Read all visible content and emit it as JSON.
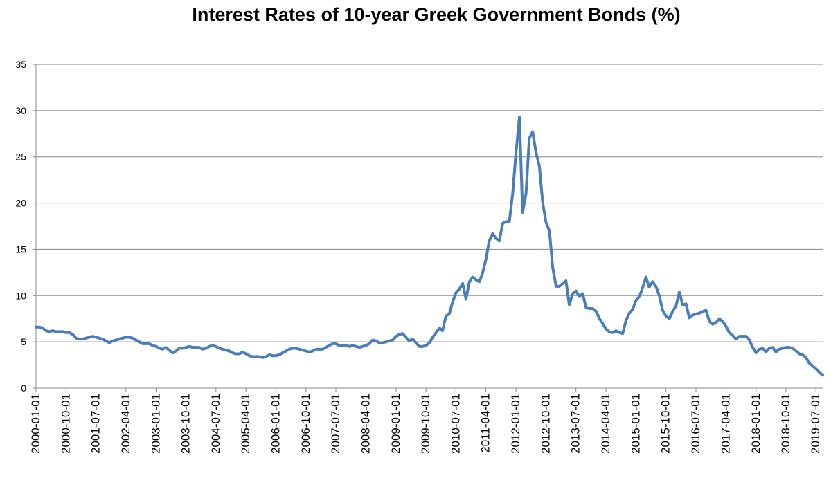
{
  "chart_data": {
    "type": "line",
    "title": "Interest Rates of 10-year Greek Government Bonds (%)",
    "xlabel": "",
    "ylabel": "",
    "ylim": [
      0,
      35
    ],
    "yticks": [
      0,
      5,
      10,
      15,
      20,
      25,
      30,
      35
    ],
    "grid": "horizontal",
    "legend": "none",
    "x_tick_labels": [
      "2000-01-01",
      "2000-10-01",
      "2001-07-01",
      "2002-04-01",
      "2003-01-01",
      "2003-10-01",
      "2004-07-01",
      "2005-04-01",
      "2006-01-01",
      "2006-10-01",
      "2007-07-01",
      "2008-04-01",
      "2009-01-01",
      "2009-10-01",
      "2010-07-01",
      "2011-04-01",
      "2012-01-01",
      "2012-10-01",
      "2013-07-01",
      "2014-04-01",
      "2015-01-01",
      "2015-10-01",
      "2016-07-01",
      "2017-04-01",
      "2018-01-01",
      "2018-10-01",
      "2019-07-01"
    ],
    "x_range": [
      "2000-01-01",
      "2019-09-01"
    ],
    "series": [
      {
        "color": "#4A7EBB",
        "points": [
          [
            "2000-01-01",
            6.6
          ],
          [
            "2000-02-01",
            6.6
          ],
          [
            "2000-03-01",
            6.5
          ],
          [
            "2000-04-01",
            6.2
          ],
          [
            "2000-05-01",
            6.1
          ],
          [
            "2000-06-01",
            6.2
          ],
          [
            "2000-07-01",
            6.1
          ],
          [
            "2000-08-01",
            6.1
          ],
          [
            "2000-09-01",
            6.1
          ],
          [
            "2000-10-01",
            6.0
          ],
          [
            "2000-11-01",
            6.0
          ],
          [
            "2000-12-01",
            5.8
          ],
          [
            "2001-01-01",
            5.4
          ],
          [
            "2001-02-01",
            5.3
          ],
          [
            "2001-03-01",
            5.3
          ],
          [
            "2001-04-01",
            5.4
          ],
          [
            "2001-05-01",
            5.5
          ],
          [
            "2001-06-01",
            5.6
          ],
          [
            "2001-07-01",
            5.5
          ],
          [
            "2001-08-01",
            5.4
          ],
          [
            "2001-09-01",
            5.3
          ],
          [
            "2001-10-01",
            5.1
          ],
          [
            "2001-11-01",
            4.9
          ],
          [
            "2001-12-01",
            5.1
          ],
          [
            "2002-01-01",
            5.2
          ],
          [
            "2002-02-01",
            5.3
          ],
          [
            "2002-03-01",
            5.4
          ],
          [
            "2002-04-01",
            5.5
          ],
          [
            "2002-05-01",
            5.5
          ],
          [
            "2002-06-01",
            5.4
          ],
          [
            "2002-07-01",
            5.2
          ],
          [
            "2002-08-01",
            5.0
          ],
          [
            "2002-09-01",
            4.8
          ],
          [
            "2002-10-01",
            4.8
          ],
          [
            "2002-11-01",
            4.8
          ],
          [
            "2002-12-01",
            4.6
          ],
          [
            "2003-01-01",
            4.5
          ],
          [
            "2003-02-01",
            4.3
          ],
          [
            "2003-03-01",
            4.2
          ],
          [
            "2003-04-01",
            4.4
          ],
          [
            "2003-05-01",
            4.1
          ],
          [
            "2003-06-01",
            3.8
          ],
          [
            "2003-07-01",
            4.0
          ],
          [
            "2003-08-01",
            4.3
          ],
          [
            "2003-09-01",
            4.3
          ],
          [
            "2003-10-01",
            4.4
          ],
          [
            "2003-11-01",
            4.5
          ],
          [
            "2003-12-01",
            4.4
          ],
          [
            "2004-01-01",
            4.4
          ],
          [
            "2004-02-01",
            4.4
          ],
          [
            "2004-03-01",
            4.2
          ],
          [
            "2004-04-01",
            4.3
          ],
          [
            "2004-05-01",
            4.5
          ],
          [
            "2004-06-01",
            4.6
          ],
          [
            "2004-07-01",
            4.5
          ],
          [
            "2004-08-01",
            4.3
          ],
          [
            "2004-09-01",
            4.2
          ],
          [
            "2004-10-01",
            4.1
          ],
          [
            "2004-11-01",
            4.0
          ],
          [
            "2004-12-01",
            3.8
          ],
          [
            "2005-01-01",
            3.7
          ],
          [
            "2005-02-01",
            3.7
          ],
          [
            "2005-03-01",
            3.9
          ],
          [
            "2005-04-01",
            3.7
          ],
          [
            "2005-05-01",
            3.5
          ],
          [
            "2005-06-01",
            3.4
          ],
          [
            "2005-07-01",
            3.4
          ],
          [
            "2005-08-01",
            3.4
          ],
          [
            "2005-09-01",
            3.3
          ],
          [
            "2005-10-01",
            3.4
          ],
          [
            "2005-11-01",
            3.6
          ],
          [
            "2005-12-01",
            3.5
          ],
          [
            "2006-01-01",
            3.5
          ],
          [
            "2006-02-01",
            3.6
          ],
          [
            "2006-03-01",
            3.8
          ],
          [
            "2006-04-01",
            4.0
          ],
          [
            "2006-05-01",
            4.2
          ],
          [
            "2006-06-01",
            4.3
          ],
          [
            "2006-07-01",
            4.3
          ],
          [
            "2006-08-01",
            4.2
          ],
          [
            "2006-09-01",
            4.1
          ],
          [
            "2006-10-01",
            4.0
          ],
          [
            "2006-11-01",
            3.9
          ],
          [
            "2006-12-01",
            4.0
          ],
          [
            "2007-01-01",
            4.2
          ],
          [
            "2007-02-01",
            4.2
          ],
          [
            "2007-03-01",
            4.2
          ],
          [
            "2007-04-01",
            4.4
          ],
          [
            "2007-05-01",
            4.6
          ],
          [
            "2007-06-01",
            4.8
          ],
          [
            "2007-07-01",
            4.8
          ],
          [
            "2007-08-01",
            4.6
          ],
          [
            "2007-09-01",
            4.6
          ],
          [
            "2007-10-01",
            4.6
          ],
          [
            "2007-11-01",
            4.5
          ],
          [
            "2007-12-01",
            4.6
          ],
          [
            "2008-01-01",
            4.5
          ],
          [
            "2008-02-01",
            4.4
          ],
          [
            "2008-03-01",
            4.5
          ],
          [
            "2008-04-01",
            4.6
          ],
          [
            "2008-05-01",
            4.8
          ],
          [
            "2008-06-01",
            5.2
          ],
          [
            "2008-07-01",
            5.1
          ],
          [
            "2008-08-01",
            4.9
          ],
          [
            "2008-09-01",
            4.9
          ],
          [
            "2008-10-01",
            5.0
          ],
          [
            "2008-11-01",
            5.1
          ],
          [
            "2008-12-01",
            5.2
          ],
          [
            "2009-01-01",
            5.6
          ],
          [
            "2009-02-01",
            5.8
          ],
          [
            "2009-03-01",
            5.9
          ],
          [
            "2009-04-01",
            5.5
          ],
          [
            "2009-05-01",
            5.1
          ],
          [
            "2009-06-01",
            5.3
          ],
          [
            "2009-07-01",
            4.9
          ],
          [
            "2009-08-01",
            4.5
          ],
          [
            "2009-09-01",
            4.5
          ],
          [
            "2009-10-01",
            4.6
          ],
          [
            "2009-11-01",
            4.9
          ],
          [
            "2009-12-01",
            5.5
          ],
          [
            "2010-01-01",
            6.0
          ],
          [
            "2010-02-01",
            6.5
          ],
          [
            "2010-03-01",
            6.2
          ],
          [
            "2010-04-01",
            7.8
          ],
          [
            "2010-05-01",
            8.0
          ],
          [
            "2010-06-01",
            9.3
          ],
          [
            "2010-07-01",
            10.3
          ],
          [
            "2010-08-01",
            10.7
          ],
          [
            "2010-09-01",
            11.3
          ],
          [
            "2010-10-01",
            9.6
          ],
          [
            "2010-11-01",
            11.5
          ],
          [
            "2010-12-01",
            12.0
          ],
          [
            "2011-01-01",
            11.7
          ],
          [
            "2011-02-01",
            11.5
          ],
          [
            "2011-03-01",
            12.4
          ],
          [
            "2011-04-01",
            13.9
          ],
          [
            "2011-05-01",
            15.9
          ],
          [
            "2011-06-01",
            16.7
          ],
          [
            "2011-07-01",
            16.2
          ],
          [
            "2011-08-01",
            15.9
          ],
          [
            "2011-09-01",
            17.8
          ],
          [
            "2011-10-01",
            18.0
          ],
          [
            "2011-11-01",
            18.0
          ],
          [
            "2011-12-01",
            21.0
          ],
          [
            "2012-01-01",
            25.5
          ],
          [
            "2012-02-01",
            29.3
          ],
          [
            "2012-03-01",
            19.0
          ],
          [
            "2012-04-01",
            21.0
          ],
          [
            "2012-05-01",
            27.0
          ],
          [
            "2012-06-01",
            27.7
          ],
          [
            "2012-07-01",
            25.5
          ],
          [
            "2012-08-01",
            24.0
          ],
          [
            "2012-09-01",
            20.0
          ],
          [
            "2012-10-01",
            17.9
          ],
          [
            "2012-11-01",
            17.0
          ],
          [
            "2012-12-01",
            13.0
          ],
          [
            "2013-01-01",
            11.0
          ],
          [
            "2013-02-01",
            11.0
          ],
          [
            "2013-03-01",
            11.3
          ],
          [
            "2013-04-01",
            11.6
          ],
          [
            "2013-05-01",
            9.0
          ],
          [
            "2013-06-01",
            10.2
          ],
          [
            "2013-07-01",
            10.5
          ],
          [
            "2013-08-01",
            9.9
          ],
          [
            "2013-09-01",
            10.2
          ],
          [
            "2013-10-01",
            8.7
          ],
          [
            "2013-11-01",
            8.6
          ],
          [
            "2013-12-01",
            8.6
          ],
          [
            "2014-01-01",
            8.3
          ],
          [
            "2014-02-01",
            7.5
          ],
          [
            "2014-03-01",
            7.0
          ],
          [
            "2014-04-01",
            6.4
          ],
          [
            "2014-05-01",
            6.1
          ],
          [
            "2014-06-01",
            6.0
          ],
          [
            "2014-07-01",
            6.2
          ],
          [
            "2014-08-01",
            6.0
          ],
          [
            "2014-09-01",
            5.9
          ],
          [
            "2014-10-01",
            7.3
          ],
          [
            "2014-11-01",
            8.1
          ],
          [
            "2014-12-01",
            8.5
          ],
          [
            "2015-01-01",
            9.5
          ],
          [
            "2015-02-01",
            9.9
          ],
          [
            "2015-03-01",
            10.8
          ],
          [
            "2015-04-01",
            12.0
          ],
          [
            "2015-05-01",
            10.9
          ],
          [
            "2015-06-01",
            11.5
          ],
          [
            "2015-07-01",
            11.0
          ],
          [
            "2015-08-01",
            10.0
          ],
          [
            "2015-09-01",
            8.4
          ],
          [
            "2015-10-01",
            7.8
          ],
          [
            "2015-11-01",
            7.5
          ],
          [
            "2015-12-01",
            8.3
          ],
          [
            "2016-01-01",
            8.9
          ],
          [
            "2016-02-01",
            10.4
          ],
          [
            "2016-03-01",
            9.0
          ],
          [
            "2016-04-01",
            9.1
          ],
          [
            "2016-05-01",
            7.6
          ],
          [
            "2016-06-01",
            7.9
          ],
          [
            "2016-07-01",
            8.0
          ],
          [
            "2016-08-01",
            8.1
          ],
          [
            "2016-09-01",
            8.3
          ],
          [
            "2016-10-01",
            8.4
          ],
          [
            "2016-11-01",
            7.2
          ],
          [
            "2016-12-01",
            6.9
          ],
          [
            "2017-01-01",
            7.1
          ],
          [
            "2017-02-01",
            7.5
          ],
          [
            "2017-03-01",
            7.2
          ],
          [
            "2017-04-01",
            6.7
          ],
          [
            "2017-05-01",
            6.0
          ],
          [
            "2017-06-01",
            5.7
          ],
          [
            "2017-07-01",
            5.3
          ],
          [
            "2017-08-01",
            5.6
          ],
          [
            "2017-09-01",
            5.6
          ],
          [
            "2017-10-01",
            5.6
          ],
          [
            "2017-11-01",
            5.2
          ],
          [
            "2017-12-01",
            4.4
          ],
          [
            "2018-01-01",
            3.8
          ],
          [
            "2018-02-01",
            4.2
          ],
          [
            "2018-03-01",
            4.3
          ],
          [
            "2018-04-01",
            3.9
          ],
          [
            "2018-05-01",
            4.3
          ],
          [
            "2018-06-01",
            4.4
          ],
          [
            "2018-07-01",
            3.9
          ],
          [
            "2018-08-01",
            4.2
          ],
          [
            "2018-09-01",
            4.3
          ],
          [
            "2018-10-01",
            4.4
          ],
          [
            "2018-11-01",
            4.4
          ],
          [
            "2018-12-01",
            4.3
          ],
          [
            "2019-01-01",
            4.0
          ],
          [
            "2019-02-01",
            3.7
          ],
          [
            "2019-03-01",
            3.6
          ],
          [
            "2019-04-01",
            3.3
          ],
          [
            "2019-05-01",
            2.7
          ],
          [
            "2019-06-01",
            2.4
          ],
          [
            "2019-07-01",
            2.1
          ],
          [
            "2019-08-01",
            1.7
          ],
          [
            "2019-09-01",
            1.4
          ]
        ]
      }
    ]
  }
}
